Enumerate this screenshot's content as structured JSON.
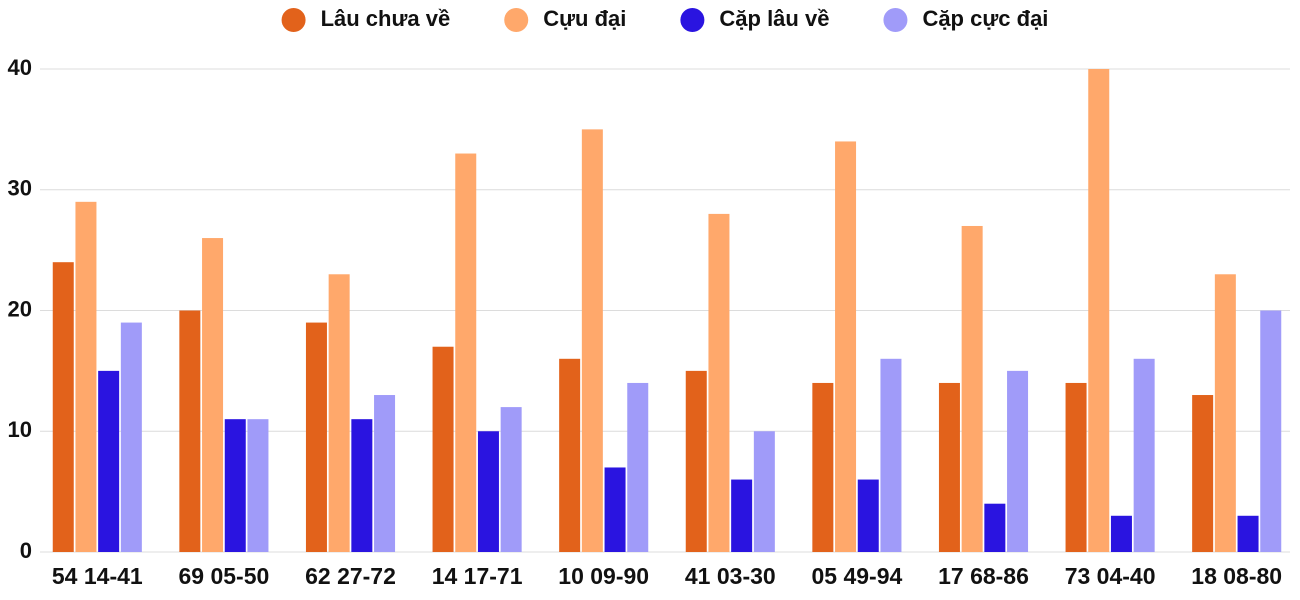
{
  "chart_data": {
    "type": "bar",
    "categories": [
      "54 14-41",
      "69 05-50",
      "62 27-72",
      "14 17-71",
      "10 09-90",
      "41 03-30",
      "05 49-94",
      "17 68-86",
      "73 04-40",
      "18 08-80"
    ],
    "series": [
      {
        "name": "Lâu chưa về",
        "color": "#e2621b",
        "values": [
          24,
          20,
          19,
          17,
          16,
          15,
          14,
          14,
          14,
          13
        ]
      },
      {
        "name": "Cựu đại",
        "color": "#ffa86b",
        "values": [
          29,
          26,
          23,
          33,
          35,
          28,
          34,
          27,
          40,
          23
        ]
      },
      {
        "name": "Cặp lâu về",
        "color": "#2a14e0",
        "values": [
          15,
          11,
          11,
          10,
          7,
          6,
          6,
          4,
          3,
          3
        ]
      },
      {
        "name": "Cặp cực đại",
        "color": "#a09bf9",
        "values": [
          19,
          11,
          13,
          12,
          14,
          10,
          16,
          15,
          16,
          20
        ]
      }
    ],
    "ylim": [
      0,
      40
    ],
    "yticks": [
      0,
      10,
      20,
      30,
      40
    ],
    "grid": true,
    "legend": "top"
  }
}
